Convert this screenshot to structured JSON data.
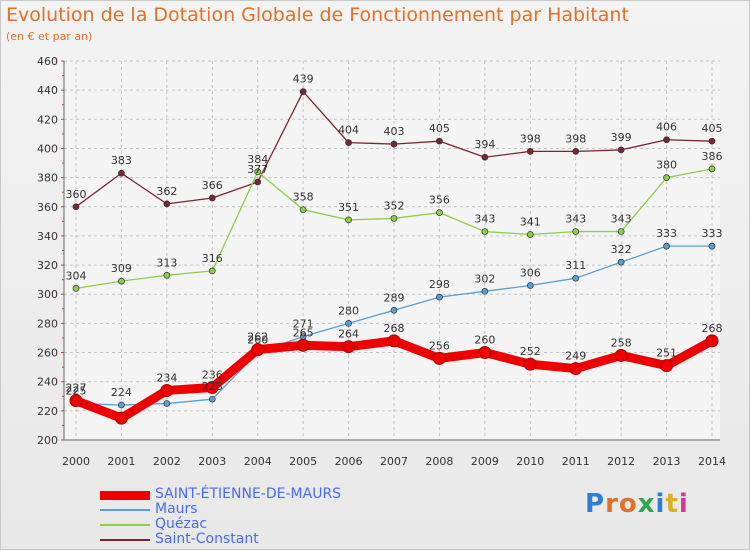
{
  "title": "Evolution de la Dotation Globale de Fonctionnement par Habitant",
  "subtitle": "(en € et par an)",
  "logo": "Proxiti",
  "chart_data": {
    "type": "line",
    "x": [
      "2000",
      "2001",
      "2002",
      "2003",
      "2004",
      "2005",
      "2006",
      "2007",
      "2008",
      "2009",
      "2010",
      "2011",
      "2012",
      "2013",
      "2014"
    ],
    "ylim": [
      200,
      460
    ],
    "yticks": [
      200,
      220,
      240,
      260,
      280,
      300,
      320,
      340,
      360,
      380,
      400,
      420,
      440,
      460
    ],
    "grid": true,
    "legend_position": "bottom-left",
    "series": [
      {
        "name": "SAINT-ÉTIENNE-DE-MAURS",
        "color": "#ee0000",
        "values": [
          227,
          215,
          234,
          236,
          262,
          265,
          264,
          268,
          256,
          260,
          252,
          249,
          258,
          251,
          268
        ],
        "labels": [
          "227",
          "",
          "234",
          "236",
          "262",
          "265",
          "264",
          "268",
          "256",
          "260",
          "252",
          "249",
          "258",
          "251",
          "268"
        ]
      },
      {
        "name": "Maurs",
        "color": "#5a9fd4",
        "values": [
          225,
          224,
          225,
          228,
          260,
          271,
          280,
          289,
          298,
          302,
          306,
          311,
          322,
          333,
          333
        ],
        "labels": [
          "225",
          "224",
          "",
          "228",
          "260",
          "271",
          "280",
          "289",
          "298",
          "302",
          "306",
          "311",
          "322",
          "333",
          "333"
        ]
      },
      {
        "name": "Quézac",
        "color": "#8ccd4a",
        "values": [
          304,
          309,
          313,
          316,
          384,
          358,
          351,
          352,
          356,
          343,
          341,
          343,
          343,
          380,
          386
        ],
        "labels": [
          "304",
          "309",
          "313",
          "316",
          "384",
          "358",
          "351",
          "352",
          "356",
          "343",
          "341",
          "343",
          "343",
          "380",
          "386"
        ]
      },
      {
        "name": "Saint-Constant",
        "color": "#7a2630",
        "values": [
          360,
          383,
          362,
          366,
          377,
          439,
          404,
          403,
          405,
          394,
          398,
          398,
          399,
          406,
          405
        ],
        "labels": [
          "360",
          "383",
          "362",
          "366",
          "377",
          "439",
          "404",
          "403",
          "405",
          "394",
          "398",
          "398",
          "399",
          "406",
          "405"
        ]
      }
    ]
  }
}
